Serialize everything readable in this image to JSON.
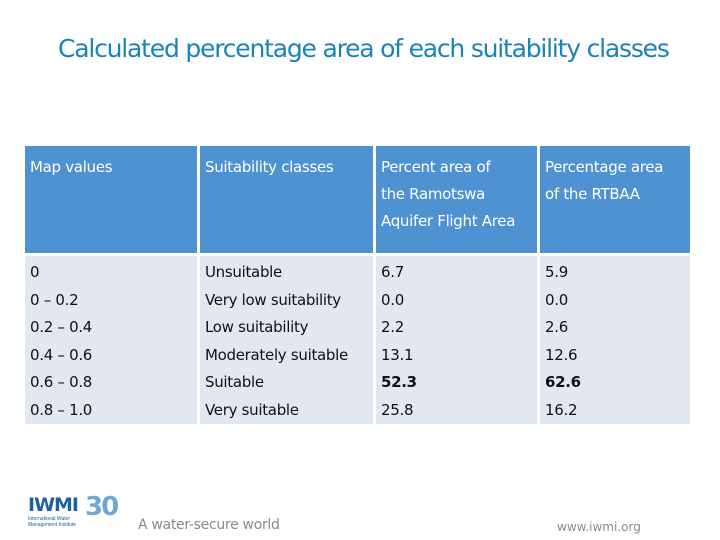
{
  "title": "Calculated percentage area of each suitability classes",
  "table": {
    "headers": {
      "map_values": "Map values",
      "suitability_classes": "Suitability classes",
      "percent_ramotswa_line1": "Percent area of",
      "percent_ramotswa_line2": "the Ramotswa",
      "percent_ramotswa_line3": "Aquifer Flight Area",
      "percent_rtbaa_line1": "Percentage area",
      "percent_rtbaa_line2": "of the RTBAA"
    },
    "map_values": [
      "0",
      "0 – 0.2",
      "0.2 – 0.4",
      "0.4 – 0.6",
      "0.6 – 0.8",
      "0.8 – 1.0"
    ],
    "classes": [
      "Unsuitable",
      "Very low suitability",
      "Low suitability",
      "Moderately suitable",
      "Suitable",
      "Very suitable"
    ],
    "percent_ramotswa": [
      "6.7",
      "0.0",
      "2.2",
      "13.1",
      "52.3",
      "25.8"
    ],
    "percent_rtbaa": [
      "5.9",
      "0.0",
      "2.6",
      "12.6",
      "62.6",
      "16.2"
    ]
  },
  "footer": {
    "logo_word": "IWMI",
    "logo_number": "30",
    "logo_subtitle": "International Water Management Institute",
    "tagline": "A water-secure world",
    "url": "www.iwmi.org"
  },
  "colors": {
    "title": "#1a84b8",
    "header_bg": "#4f92d1",
    "body_bg": "#e3e7f2"
  }
}
